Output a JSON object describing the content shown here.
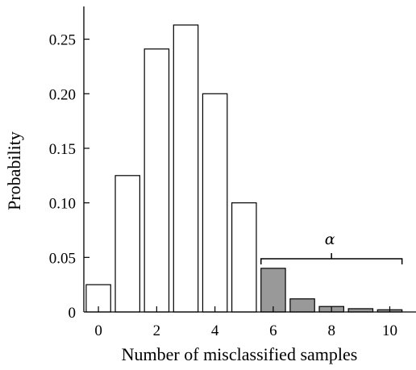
{
  "chart_data": {
    "type": "bar",
    "title": "",
    "xlabel": "Number of misclassified samples",
    "ylabel": "Probability",
    "x": [
      0,
      1,
      2,
      3,
      4,
      5,
      6,
      7,
      8,
      9,
      10
    ],
    "values": [
      0.025,
      0.125,
      0.241,
      0.263,
      0.2,
      0.1,
      0.04,
      0.012,
      0.005,
      0.003,
      0.002
    ],
    "xticks": [
      "0",
      "2",
      "4",
      "6",
      "8",
      "10"
    ],
    "xtick_values": [
      0,
      2,
      4,
      6,
      8,
      10
    ],
    "yticks": [
      "0",
      "0.05",
      "0.10",
      "0.15",
      "0.20",
      "0.25"
    ],
    "ytick_values": [
      0,
      0.05,
      0.1,
      0.15,
      0.2,
      0.25
    ],
    "ylim": [
      0,
      0.28
    ],
    "xlim": [
      -0.5,
      10.9
    ],
    "grid": false,
    "highlight": {
      "from_x": 6,
      "to_x": 10,
      "label": "α",
      "color": "#999999"
    },
    "bar_color": "#ffffff",
    "edge_color": "#000000"
  }
}
